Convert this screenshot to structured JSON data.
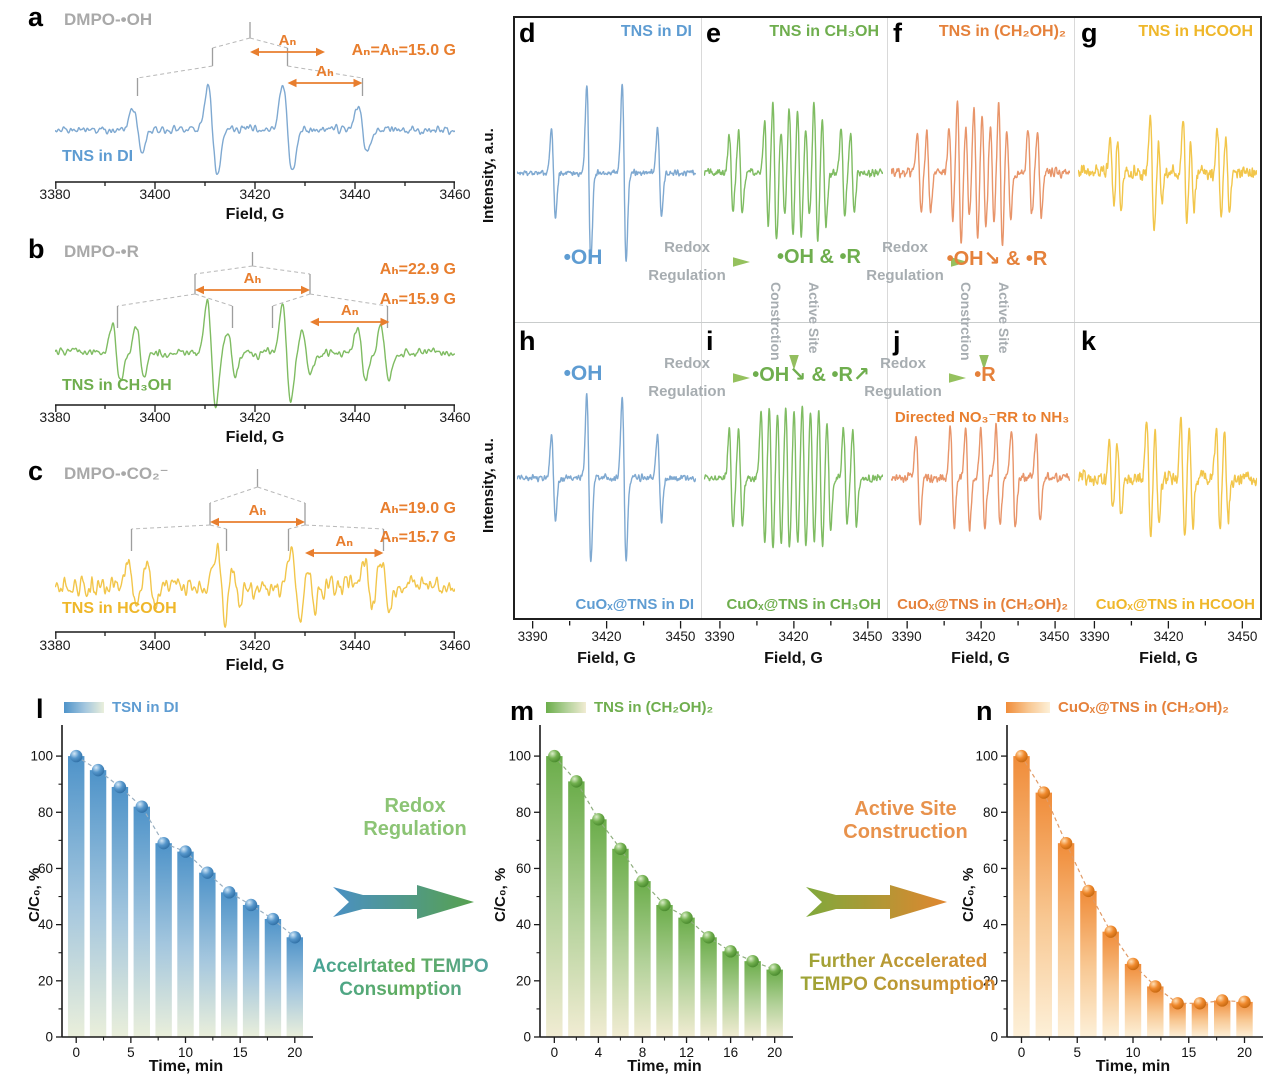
{
  "colors": {
    "blue": "#5E9CD2",
    "green": "#6FAE4E",
    "orange": "#E5813B",
    "yellow": "#EFB72A",
    "gray_label": "#A9A9A9",
    "annotation_orange": "#E87E2E",
    "scheme_gray": "#A7ADB1"
  },
  "scheme": {
    "row_top": {
      "d": "•OH",
      "e": "•OH & •R",
      "f": "•OH↘ & •R"
    },
    "row_bottom": {
      "h": "•OH",
      "i": "•OH↘ & •R↗",
      "j": "•R"
    },
    "arrow_label_line1": "Redox",
    "arrow_label_line2": "Regulation",
    "vertical_label_a": "Active Site",
    "vertical_label_b": "Constrction",
    "note_j": "Directed NO₃⁻RR to NH₃"
  },
  "transitions": [
    {
      "title": [
        "Redox",
        "Regulation"
      ],
      "subtitle": [
        "Accelrtated TEMPO",
        "Consumption"
      ]
    },
    {
      "title": [
        "Active Site",
        "Construction"
      ],
      "subtitle": [
        "Further Accelerated",
        "TEMPO Consumption"
      ]
    }
  ],
  "chart_data": [
    {
      "panel": "a",
      "type": "line",
      "title": "DMPO-•OH",
      "series": "TNS in DI",
      "xlabel": "Field, G",
      "xlim": [
        3380,
        3460
      ],
      "xticks": [
        3380,
        3400,
        3420,
        3440,
        3460
      ],
      "color": "#7FA9D1",
      "label_color": "#5E9CD2",
      "lw": 0.9,
      "peaks": [
        3396.5,
        3411.5,
        3426.5,
        3441.5
      ],
      "amps": [
        1,
        1.95,
        1.95,
        1
      ],
      "hyperfine": [
        {
          "label": "Aₙ",
          "from": 3419,
          "to": 3434
        },
        {
          "label": "Aₕ",
          "from": 3426.5,
          "to": 3441.5
        }
      ],
      "hyperfine_values": [
        "Aₙ=Aₕ=15.0 G"
      ],
      "comb": {
        "center": 3419,
        "level1": [
          3411.5,
          3426.5
        ],
        "level2": [
          [
            3396.5
          ],
          [
            3441.5
          ]
        ]
      }
    },
    {
      "panel": "b",
      "type": "line",
      "title": "DMPO-•R",
      "series": "TNS in CH₃OH",
      "xlabel": "Field, G",
      "xlim": [
        3380,
        3460
      ],
      "xticks": [
        3380,
        3400,
        3420,
        3440,
        3460
      ],
      "color": "#7FBC62",
      "label_color": "#6FAE4E",
      "lw": 0.8,
      "peaks": [
        3392.3,
        3397,
        3411.3,
        3415.3,
        3426.3,
        3430.3,
        3441.3,
        3446
      ],
      "amps": [
        0.95,
        0.9,
        1.8,
        0.75,
        1.8,
        0.75,
        0.95,
        0.9
      ],
      "hyperfine": [
        {
          "label": "Aₕ",
          "from": 3408,
          "to": 3431
        },
        {
          "label": "Aₙ",
          "from": 3431,
          "to": 3446.9
        }
      ],
      "hyperfine_values": [
        "Aₕ=22.9 G",
        "Aₙ=15.9 G"
      ],
      "comb": {
        "center": 3419.5,
        "level1": [
          3408,
          3431
        ],
        "level2": [
          [
            3392.5,
            3415.5
          ],
          [
            3423.5,
            3446.5
          ]
        ]
      }
    },
    {
      "panel": "c",
      "type": "line",
      "title": "DMPO-•CO₂⁻",
      "series": "TNS in HCOOH",
      "xlabel": "Field, G",
      "xlim": [
        3380,
        3460
      ],
      "xticks": [
        3380,
        3400,
        3420,
        3440,
        3460
      ],
      "color": "#F2C64B",
      "label_color": "#EFB72A",
      "lw": 0.8,
      "peaks": [
        3395.5,
        3399.2,
        3413.2,
        3416.2,
        3428.2,
        3431.2,
        3442.6,
        3446
      ],
      "amps": [
        0.85,
        0.85,
        1.6,
        0.7,
        1.6,
        0.7,
        0.95,
        0.9
      ],
      "hyperfine": [
        {
          "label": "Aₕ",
          "from": 3411,
          "to": 3430
        },
        {
          "label": "Aₙ",
          "from": 3430,
          "to": 3445.7
        }
      ],
      "hyperfine_values": [
        "Aₕ=19.0 G",
        "Aₙ=15.7 G"
      ],
      "comb": {
        "center": 3420.5,
        "level1": [
          3411,
          3430
        ],
        "level2": [
          [
            3395.3,
            3414.3
          ],
          [
            3426.7,
            3445.7
          ]
        ]
      }
    },
    {
      "panel": "d",
      "type": "line",
      "title": "TNS in DI",
      "ylabel": "Intensity, a.u.",
      "xlim": [
        3382,
        3458
      ],
      "xticks": [
        3390,
        3420,
        3450
      ],
      "color": "#7FA9D1",
      "label_color": "#5E9CD2",
      "lw": 0.85,
      "peaks": [
        3397.5,
        3412.5,
        3427.5,
        3442.5
      ],
      "amps": [
        1,
        1.95,
        1.95,
        1
      ]
    },
    {
      "panel": "e",
      "type": "line",
      "title": "TNS in CH₃OH",
      "xlim": [
        3382,
        3458
      ],
      "xticks": [
        3390,
        3420,
        3450
      ],
      "color": "#7FBC62",
      "label_color": "#6FAE4E",
      "lw": 0.8,
      "peaks": [
        3393.5,
        3397.5,
        3408.5,
        3412,
        3415.5,
        3419,
        3422.5,
        3426,
        3429.5,
        3433,
        3441,
        3445
      ],
      "amps": [
        0.8,
        0.85,
        1.1,
        1.5,
        0.9,
        1.35,
        1.35,
        0.9,
        1.5,
        1.1,
        0.9,
        0.85
      ]
    },
    {
      "panel": "f",
      "type": "line",
      "title": "TNS in (CH₂OH)₂",
      "xlim": [
        3382,
        3458
      ],
      "xticks": [
        3390,
        3420,
        3450
      ],
      "color": "#E8956A",
      "label_color": "#E5813B",
      "lw": 0.8,
      "peaks": [
        3394,
        3398,
        3407.5,
        3411,
        3414.5,
        3418,
        3421.5,
        3425,
        3428.5,
        3432,
        3441,
        3445
      ],
      "amps": [
        0.85,
        0.9,
        1.0,
        1.55,
        1.0,
        1.4,
        1.3,
        1.0,
        1.55,
        1.0,
        0.95,
        0.9
      ]
    },
    {
      "panel": "g",
      "type": "line",
      "title": "TNS in HCOOH",
      "xlim": [
        3382,
        3458
      ],
      "xticks": [
        3390,
        3420,
        3450
      ],
      "color": "#F2C64B",
      "label_color": "#EFB72A",
      "lw": 0.8,
      "peaks": [
        3396.5,
        3399.5,
        3413.5,
        3417,
        3427.5,
        3430.5,
        3442,
        3445.5
      ],
      "amps": [
        0.9,
        0.95,
        1.5,
        0.8,
        1.3,
        0.9,
        1.1,
        1.0
      ]
    },
    {
      "panel": "h",
      "type": "line",
      "series": "CuOₓ@TNS in DI",
      "ylabel": "Intensity, a.u.",
      "xlabel": "Field, G",
      "xlim": [
        3382,
        3458
      ],
      "xticks": [
        3390,
        3420,
        3450
      ],
      "color": "#7FA9D1",
      "label_color": "#5E9CD2",
      "lw": 0.85,
      "peaks": [
        3397.5,
        3412.5,
        3427.5,
        3442.5
      ],
      "amps": [
        1,
        1.9,
        1.9,
        1
      ]
    },
    {
      "panel": "i",
      "type": "line",
      "series": "CuOₓ@TNS in CH₃OH",
      "xlabel": "Field, G",
      "xlim": [
        3382,
        3458
      ],
      "xticks": [
        3390,
        3420,
        3450
      ],
      "color": "#7FBC62",
      "label_color": "#6FAE4E",
      "lw": 0.8,
      "peaks": [
        3393.5,
        3397.5,
        3407,
        3410.5,
        3414,
        3417.5,
        3421,
        3424.5,
        3428,
        3431.5,
        3435,
        3442,
        3446
      ],
      "amps": [
        0.9,
        0.9,
        1.2,
        1.3,
        1.2,
        1.3,
        1.2,
        1.3,
        1.2,
        1.3,
        1.0,
        0.9,
        0.85
      ]
    },
    {
      "panel": "j",
      "type": "line",
      "series": "CuOₓ@TNS in (CH₂OH)₂",
      "xlabel": "Field, G",
      "xlim": [
        3382,
        3458
      ],
      "xticks": [
        3390,
        3420,
        3450
      ],
      "color": "#E8956A",
      "label_color": "#E5813B",
      "lw": 0.85,
      "peaks": [
        3393.5,
        3408,
        3414.5,
        3421,
        3427.5,
        3434,
        3444.5
      ],
      "amps": [
        1,
        1.15,
        1.15,
        1.15,
        1.15,
        1.1,
        1
      ]
    },
    {
      "panel": "k",
      "type": "line",
      "series": "CuOₓ@TNS in HCOOH",
      "xlabel": "Field, G",
      "xlim": [
        3382,
        3458
      ],
      "xticks": [
        3390,
        3420,
        3450
      ],
      "color": "#F2C64B",
      "label_color": "#EFB72A",
      "lw": 0.8,
      "peaks": [
        3396,
        3399.5,
        3412,
        3415.5,
        3426.5,
        3430,
        3441.5,
        3445
      ],
      "amps": [
        0.9,
        0.95,
        1.5,
        1.1,
        1.6,
        1.2,
        1.3,
        1.1
      ]
    },
    {
      "panel": "l",
      "type": "bar",
      "legend": "TSN in DI",
      "xlabel": "Time, min",
      "ylabel": "C/C₀, %",
      "x": [
        0,
        2,
        4,
        6,
        8,
        10,
        12,
        14,
        16,
        18,
        20
      ],
      "values": [
        100,
        95,
        89,
        82,
        69,
        66,
        58.5,
        51.5,
        47,
        42,
        35.5
      ],
      "ylim": [
        0,
        110
      ],
      "yticks": [
        0,
        20,
        40,
        60,
        80,
        100
      ],
      "yticks_minor": [
        10,
        30,
        50,
        70,
        90
      ],
      "xticks": [
        0,
        5,
        10,
        15,
        20
      ],
      "xticks_minor": [
        2.5,
        7.5,
        12.5,
        17.5
      ],
      "bar_top": "#4E93C9",
      "bar_mid": "#A3C6DE",
      "bar_bottom": "#EAEFDB",
      "marker": "#5596CB",
      "marker_light": "#D5E9F8",
      "marker_dark": "#2E6EA4",
      "line": "#9AAFC0",
      "legend_color": "#5E9CD2"
    },
    {
      "panel": "m",
      "type": "bar",
      "legend": "TNS in (CH₂OH)₂",
      "xlabel": "Time, min",
      "ylabel": "C/C₀, %",
      "x": [
        0,
        2,
        4,
        6,
        8,
        10,
        12,
        14,
        16,
        18,
        20
      ],
      "values": [
        100,
        91,
        77.5,
        67,
        55.5,
        47,
        42.5,
        35.5,
        30.5,
        27,
        24
      ],
      "ylim": [
        0,
        110
      ],
      "yticks": [
        0,
        20,
        40,
        60,
        80,
        100
      ],
      "yticks_minor": [
        10,
        30,
        50,
        70,
        90
      ],
      "xticks": [
        0,
        4,
        8,
        12,
        16,
        20
      ],
      "xticks_minor": [
        2,
        6,
        10,
        14,
        18
      ],
      "bar_top": "#6BAD4A",
      "bar_mid": "#B2D199",
      "bar_bottom": "#F1ECD3",
      "marker": "#72B04F",
      "marker_light": "#DCEECA",
      "marker_dark": "#47882C",
      "line": "#8FAE7E",
      "legend_color": "#6FAE4E"
    },
    {
      "panel": "n",
      "type": "bar",
      "legend": "CuOₓ@TNS in (CH₂OH)₂",
      "xlabel": "Time, min",
      "ylabel": "C/C₀, %",
      "x": [
        0,
        2,
        4,
        6,
        8,
        10,
        12,
        14,
        16,
        18,
        20
      ],
      "values": [
        100,
        87,
        69,
        52,
        37.5,
        26,
        18,
        12,
        12,
        13,
        12.5
      ],
      "ylim": [
        0,
        110
      ],
      "yticks": [
        0,
        20,
        40,
        60,
        80,
        100
      ],
      "yticks_minor": [
        10,
        30,
        50,
        70,
        90
      ],
      "xticks": [
        0,
        5,
        10,
        15,
        20
      ],
      "xticks_minor": [
        2.5,
        7.5,
        12.5,
        17.5
      ],
      "bar_top": "#F08C39",
      "bar_mid": "#F8C893",
      "bar_bottom": "#FDF0D8",
      "marker": "#F08A2E",
      "marker_light": "#FFDFB6",
      "marker_dark": "#C4660E",
      "line": "#E09A66",
      "legend_color": "#E5813B"
    }
  ]
}
